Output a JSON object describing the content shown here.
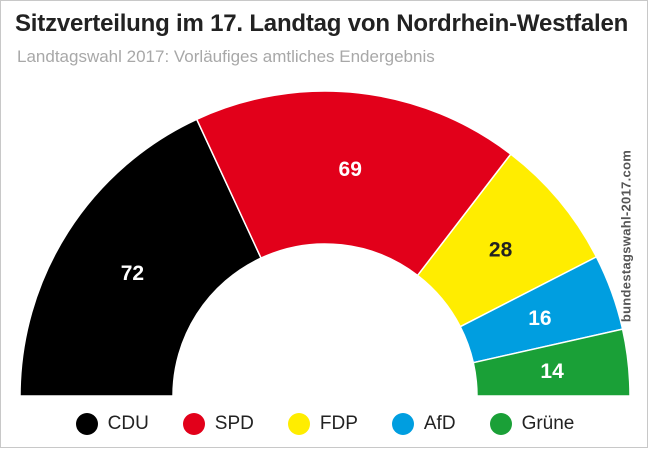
{
  "header": {
    "title": "Sitzverteilung im 17. Landtag von Nordrhein-Westfalen",
    "subtitle": "Landtagswahl 2017: Vorläufiges amtliches Endergebnis",
    "source": "bundestagswahl-2017.com"
  },
  "chart_data": {
    "type": "pie",
    "variant": "half-donut",
    "title": "Sitzverteilung im 17. Landtag von Nordrhein-Westfalen",
    "subtitle": "Landtagswahl 2017: Vorläufiges amtliches Endergebnis",
    "categories": [
      "CDU",
      "SPD",
      "FDP",
      "AfD",
      "Grüne"
    ],
    "values": [
      72,
      69,
      28,
      16,
      14
    ],
    "colors": [
      "#000000",
      "#e2001a",
      "#ffed00",
      "#009ee0",
      "#1aa037"
    ],
    "label_colors": [
      "#ffffff",
      "#ffffff",
      "#222222",
      "#ffffff",
      "#ffffff"
    ],
    "legend_position": "bottom"
  }
}
